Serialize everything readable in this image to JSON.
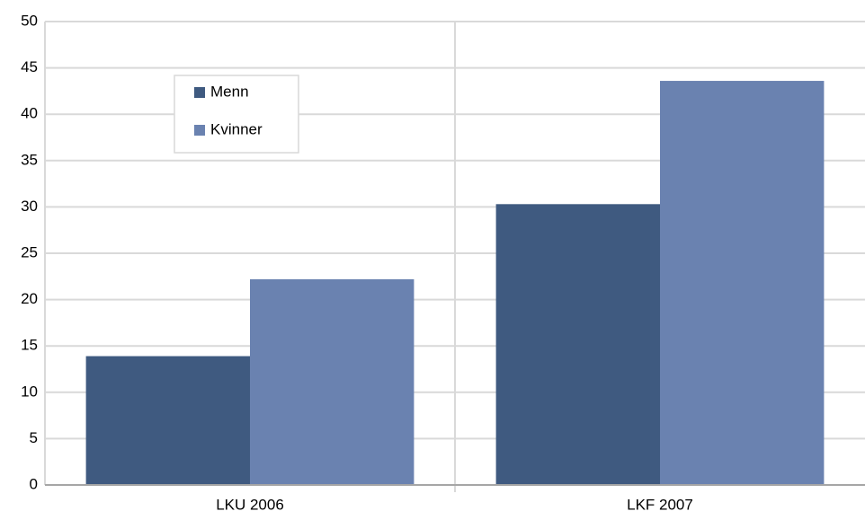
{
  "chart_data": {
    "type": "bar",
    "categories": [
      "LKU 2006",
      "LKF 2007"
    ],
    "series": [
      {
        "name": "Menn",
        "color": "#3f5a80",
        "values": [
          13.9,
          30.3
        ]
      },
      {
        "name": "Kvinner",
        "color": "#6a82b0",
        "values": [
          22.2,
          43.6
        ]
      }
    ],
    "ylim": [
      0,
      50
    ],
    "yticks": [
      0,
      5,
      10,
      15,
      20,
      25,
      30,
      35,
      40,
      45,
      50
    ],
    "grid": true,
    "legend": "upper left"
  }
}
